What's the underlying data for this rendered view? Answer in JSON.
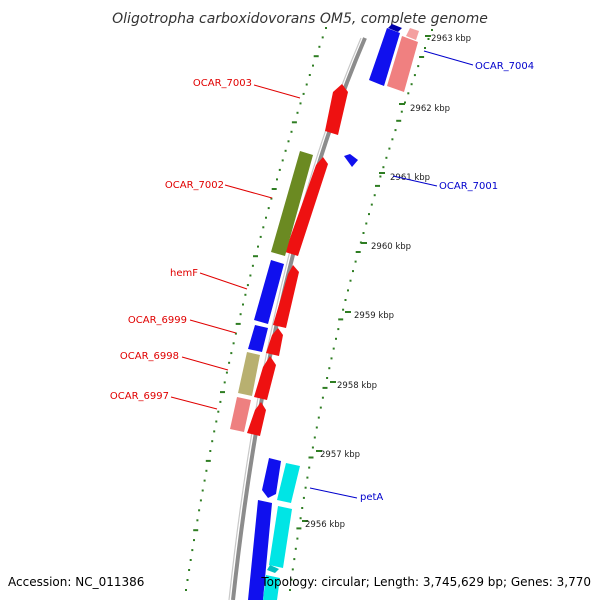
{
  "title": "Oligotropha carboxidovorans OM5, complete genome",
  "footer": {
    "accession": "Accession: NC_011386",
    "summary": "Topology: circular; Length: 3,745,629 bp; Genes: 3,770"
  },
  "colors": {
    "backbone": "#8c8c8c",
    "tick": "#2e7d22",
    "label_minus": "#e00000",
    "label_plus": "#0000cc",
    "cds_plus": "#1010ee",
    "cds_plus_light": "#f08080",
    "cds_minus": "#ee1111",
    "cog_olive": "#6b8a22",
    "cog_khaki": "#b8b070",
    "cog_pink": "#ee8080",
    "cog_cyan": "#00e5e5",
    "cog_blue": "#1010ee"
  },
  "ticks": [
    {
      "label": "2963 kbp"
    },
    {
      "label": "2962 kbp"
    },
    {
      "label": "2961 kbp"
    },
    {
      "label": "2960 kbp"
    },
    {
      "label": "2959 kbp"
    },
    {
      "label": "2958 kbp"
    },
    {
      "label": "2957 kbp"
    },
    {
      "label": "2956 kbp"
    }
  ],
  "genes": [
    {
      "name": "OCAR_7004",
      "strand": "plus"
    },
    {
      "name": "OCAR_7003",
      "strand": "minus"
    },
    {
      "name": "OCAR_7002",
      "strand": "minus"
    },
    {
      "name": "OCAR_7001",
      "strand": "plus"
    },
    {
      "name": "hemF",
      "strand": "minus"
    },
    {
      "name": "OCAR_6999",
      "strand": "minus"
    },
    {
      "name": "OCAR_6998",
      "strand": "minus"
    },
    {
      "name": "OCAR_6997",
      "strand": "minus"
    },
    {
      "name": "petA",
      "strand": "plus"
    }
  ]
}
